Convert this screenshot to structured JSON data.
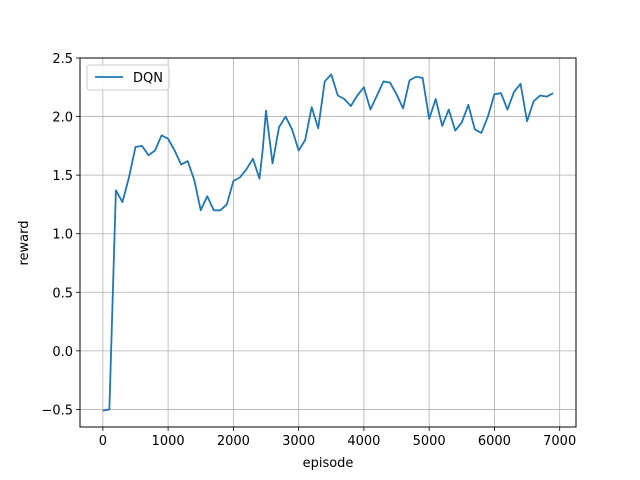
{
  "chart_data": {
    "type": "line",
    "title": "",
    "xlabel": "episode",
    "ylabel": "reward",
    "xlim": [
      -350,
      7250
    ],
    "ylim": [
      -0.65,
      2.5
    ],
    "x_ticks": [
      0,
      1000,
      2000,
      3000,
      4000,
      5000,
      6000,
      7000
    ],
    "x_tick_labels": [
      "0",
      "1000",
      "2000",
      "3000",
      "4000",
      "5000",
      "6000",
      "7000"
    ],
    "y_ticks": [
      -0.5,
      0.0,
      0.5,
      1.0,
      1.5,
      2.0,
      2.5
    ],
    "y_tick_labels": [
      "−0.5",
      "0.0",
      "0.5",
      "1.0",
      "1.5",
      "2.0",
      "2.5"
    ],
    "grid": true,
    "legend_position": "top-left",
    "series": [
      {
        "name": "DQN",
        "color": "#1f77b4",
        "x": [
          0,
          100,
          200,
          300,
          400,
          500,
          600,
          700,
          800,
          900,
          1000,
          1100,
          1200,
          1300,
          1400,
          1500,
          1600,
          1700,
          1800,
          1900,
          2000,
          2100,
          2200,
          2300,
          2400,
          2450,
          2500,
          2600,
          2700,
          2800,
          2900,
          3000,
          3100,
          3200,
          3300,
          3400,
          3500,
          3600,
          3700,
          3800,
          3900,
          4000,
          4100,
          4200,
          4300,
          4400,
          4500,
          4600,
          4700,
          4800,
          4900,
          5000,
          5100,
          5200,
          5300,
          5400,
          5500,
          5600,
          5700,
          5800,
          5900,
          6000,
          6100,
          6200,
          6300,
          6400,
          6500,
          6600,
          6700,
          6800,
          6900
        ],
        "values": [
          -0.51,
          -0.5,
          1.37,
          1.27,
          1.48,
          1.74,
          1.75,
          1.67,
          1.71,
          1.84,
          1.81,
          1.71,
          1.59,
          1.62,
          1.46,
          1.2,
          1.32,
          1.2,
          1.2,
          1.25,
          1.45,
          1.48,
          1.55,
          1.64,
          1.47,
          1.72,
          2.05,
          1.6,
          1.91,
          2.0,
          1.89,
          1.71,
          1.8,
          2.08,
          1.9,
          2.3,
          2.36,
          2.18,
          2.15,
          2.09,
          2.18,
          2.25,
          2.06,
          2.18,
          2.3,
          2.29,
          2.19,
          2.07,
          2.31,
          2.34,
          2.33,
          1.98,
          2.15,
          1.92,
          2.06,
          1.88,
          1.95,
          2.1,
          1.89,
          1.86,
          2.0,
          2.19,
          2.2,
          2.06,
          2.21,
          2.28,
          1.96,
          2.13,
          2.18,
          2.17,
          2.2
        ]
      }
    ]
  }
}
